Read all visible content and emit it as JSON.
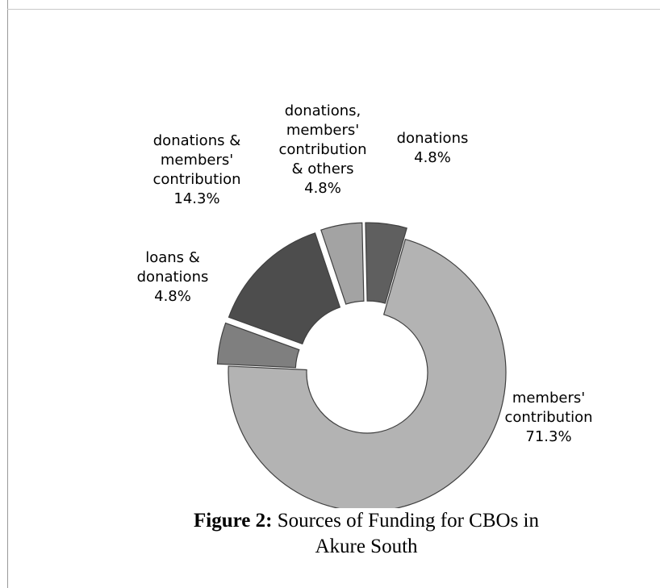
{
  "chart_data": {
    "type": "donut",
    "title": "",
    "slices": [
      {
        "name": "members' contribution",
        "percent": 71.3,
        "label_lines": [
          "members'",
          "contribution",
          "71.3%"
        ],
        "color": "#b3b3b3"
      },
      {
        "name": "loans & donations",
        "percent": 4.8,
        "label_lines": [
          "loans &",
          "donations",
          "4.8%"
        ],
        "color": "#7f7f7f"
      },
      {
        "name": "donations & members' contribution",
        "percent": 14.3,
        "label_lines": [
          "donations &",
          "members'",
          "contribution",
          "14.3%"
        ],
        "color": "#4d4d4d"
      },
      {
        "name": "donations, members' contribution & others",
        "percent": 4.8,
        "label_lines": [
          "donations,",
          "members'",
          "contribution",
          "& others",
          "4.8%"
        ],
        "color": "#a3a3a3"
      },
      {
        "name": "donations",
        "percent": 4.8,
        "label_lines": [
          "donations",
          "4.8%"
        ],
        "color": "#5f5f5f"
      }
    ],
    "legend": "none"
  },
  "caption": {
    "bold": "Figure 2:",
    "line1_rest": " Sources of Funding for CBOs in",
    "line2": "Akure South"
  }
}
